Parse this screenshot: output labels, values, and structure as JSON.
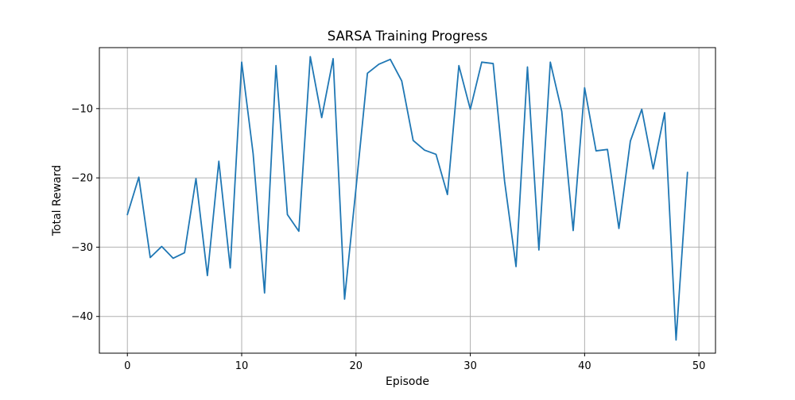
{
  "chart_data": {
    "type": "line",
    "title": "SARSA Training Progress",
    "xlabel": "Episode",
    "ylabel": "Total Reward",
    "xlim": [
      -2.45,
      51.45
    ],
    "ylim": [
      -45.3,
      -1.2
    ],
    "xticks": [
      0,
      10,
      20,
      30,
      40,
      50
    ],
    "yticks": [
      -40,
      -30,
      -20,
      -10
    ],
    "xtick_labels": [
      "0",
      "10",
      "20",
      "30",
      "40",
      "50"
    ],
    "ytick_labels": [
      "−40",
      "−30",
      "−20",
      "−10"
    ],
    "grid": true,
    "line_color": "#1f77b4",
    "series": [
      {
        "x": [
          0,
          1,
          2,
          3,
          4,
          5,
          6,
          7,
          8,
          9,
          10,
          11,
          12,
          13,
          14,
          15,
          16,
          17,
          18,
          19,
          20,
          21,
          22,
          23,
          24,
          25,
          26,
          27,
          28,
          29,
          30,
          31,
          32,
          33,
          34,
          35,
          36,
          37,
          38,
          39,
          40,
          41,
          42,
          43,
          44,
          45,
          46,
          47,
          48,
          49
        ],
        "values": [
          -25.3,
          -19.9,
          -31.5,
          -29.9,
          -31.6,
          -30.8,
          -20.1,
          -34.1,
          -17.6,
          -33.0,
          -3.3,
          -16.5,
          -36.6,
          -3.8,
          -25.3,
          -27.7,
          -2.5,
          -11.3,
          -2.8,
          -37.5,
          -21.5,
          -4.9,
          -3.6,
          -2.9,
          -6.0,
          -14.6,
          -16.0,
          -16.6,
          -22.4,
          -3.8,
          -10.1,
          -3.3,
          -3.5,
          -20.5,
          -32.8,
          -4.0,
          -30.4,
          -3.3,
          -10.4,
          -27.6,
          -7.0,
          -16.1,
          -15.9,
          -27.3,
          -14.7,
          -10.1,
          -18.7,
          -10.6,
          -43.4,
          -19.2
        ]
      }
    ]
  }
}
